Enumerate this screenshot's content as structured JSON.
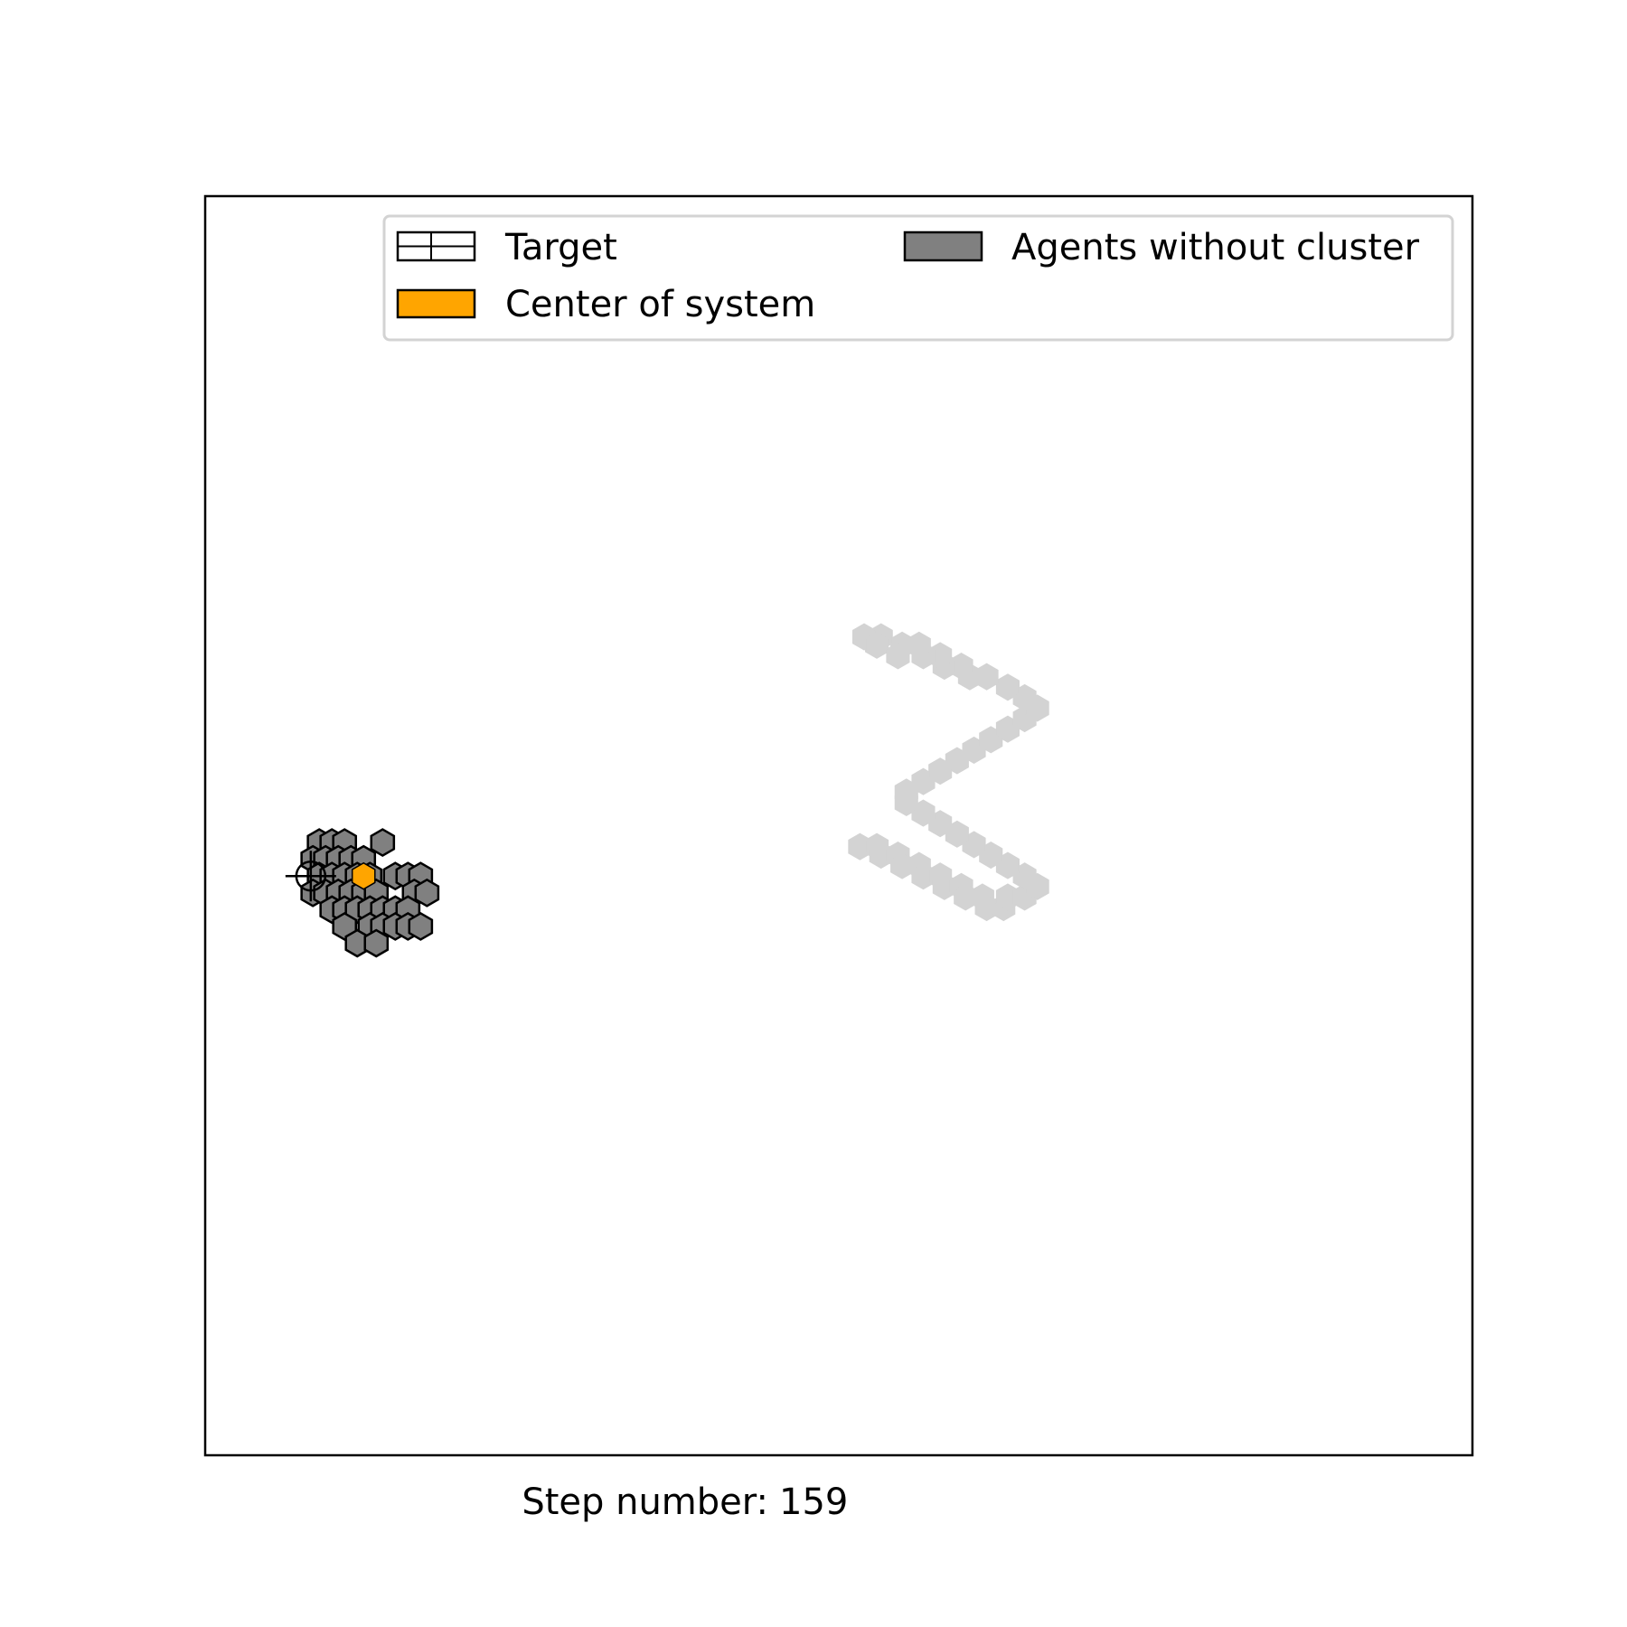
{
  "chart_data": {
    "type": "scatter",
    "title": "",
    "xlabel": "",
    "ylabel": "",
    "caption_label": "Step number:",
    "step_number": "159",
    "axes_visible": false,
    "grid": false,
    "legend_placement": "top-right",
    "legend": {
      "entries": [
        {
          "key": "target",
          "label": "Target",
          "style": "hatched"
        },
        {
          "key": "agents",
          "label": "Agents without cluster",
          "fill": "#808080"
        },
        {
          "key": "center",
          "label": "Center of system",
          "fill": "#ffa500"
        }
      ]
    },
    "colors": {
      "agent_fill": "#808080",
      "agent_edge": "#000000",
      "target_fill": "#d3d3d3",
      "center_fill": "#ffa500",
      "legend_frame": "#d3d3d3"
    },
    "xlim": [
      0,
      60
    ],
    "ylim": [
      0,
      60
    ],
    "hex_radius": 0.62,
    "target_points": [
      [
        31.0,
        29.0
      ],
      [
        31.8,
        29.0
      ],
      [
        32.0,
        28.6
      ],
      [
        32.8,
        28.6
      ],
      [
        33.0,
        28.1
      ],
      [
        33.8,
        28.1
      ],
      [
        34.0,
        27.6
      ],
      [
        34.8,
        27.6
      ],
      [
        35.0,
        27.1
      ],
      [
        35.8,
        27.1
      ],
      [
        36.0,
        26.6
      ],
      [
        36.8,
        26.6
      ],
      [
        37.0,
        26.1
      ],
      [
        37.8,
        26.1
      ],
      [
        38.0,
        26.6
      ],
      [
        38.8,
        26.6
      ],
      [
        39.4,
        27.1
      ],
      [
        38.8,
        27.6
      ],
      [
        38.0,
        28.1
      ],
      [
        37.2,
        28.6
      ],
      [
        36.4,
        29.1
      ],
      [
        35.6,
        29.6
      ],
      [
        34.8,
        30.1
      ],
      [
        34.0,
        30.6
      ],
      [
        33.2,
        31.1
      ],
      [
        33.2,
        31.6
      ],
      [
        34.0,
        32.1
      ],
      [
        34.8,
        32.6
      ],
      [
        35.6,
        33.1
      ],
      [
        36.4,
        33.6
      ],
      [
        37.2,
        34.1
      ],
      [
        38.0,
        34.6
      ],
      [
        38.8,
        35.1
      ],
      [
        39.4,
        35.6
      ],
      [
        38.8,
        36.1
      ],
      [
        38.0,
        36.6
      ],
      [
        37.0,
        37.1
      ],
      [
        36.2,
        37.1
      ],
      [
        35.8,
        37.6
      ],
      [
        35.0,
        37.6
      ],
      [
        34.8,
        38.1
      ],
      [
        34.0,
        38.1
      ],
      [
        33.8,
        38.6
      ],
      [
        33.0,
        38.6
      ],
      [
        32.0,
        39.0
      ],
      [
        31.2,
        39.0
      ],
      [
        31.8,
        38.6
      ],
      [
        32.8,
        38.1
      ]
    ],
    "agent_points": [
      [
        5.4,
        29.2
      ],
      [
        6.0,
        29.2
      ],
      [
        6.6,
        29.2
      ],
      [
        5.1,
        28.4
      ],
      [
        5.7,
        28.4
      ],
      [
        6.3,
        28.4
      ],
      [
        6.9,
        28.4
      ],
      [
        7.5,
        28.4
      ],
      [
        5.4,
        27.6
      ],
      [
        6.0,
        27.6
      ],
      [
        6.6,
        27.6
      ],
      [
        7.2,
        27.6
      ],
      [
        7.8,
        27.6
      ],
      [
        9.0,
        27.6
      ],
      [
        9.6,
        27.6
      ],
      [
        10.2,
        27.6
      ],
      [
        5.1,
        26.8
      ],
      [
        5.7,
        26.8
      ],
      [
        6.3,
        26.8
      ],
      [
        6.9,
        26.8
      ],
      [
        7.5,
        26.8
      ],
      [
        8.1,
        26.8
      ],
      [
        9.9,
        26.8
      ],
      [
        10.5,
        26.8
      ],
      [
        6.0,
        26.0
      ],
      [
        6.6,
        26.0
      ],
      [
        7.2,
        26.0
      ],
      [
        7.8,
        26.0
      ],
      [
        8.4,
        26.0
      ],
      [
        9.0,
        26.0
      ],
      [
        9.6,
        26.0
      ],
      [
        6.6,
        25.2
      ],
      [
        7.8,
        25.2
      ],
      [
        8.4,
        25.2
      ],
      [
        9.0,
        25.2
      ],
      [
        9.6,
        25.2
      ],
      [
        10.2,
        25.2
      ],
      [
        7.2,
        24.4
      ],
      [
        8.1,
        24.4
      ],
      [
        8.4,
        29.2
      ]
    ],
    "target_marker": {
      "x": 5.0,
      "y": 27.6
    },
    "center_point": {
      "x": 7.5,
      "y": 27.6
    }
  }
}
